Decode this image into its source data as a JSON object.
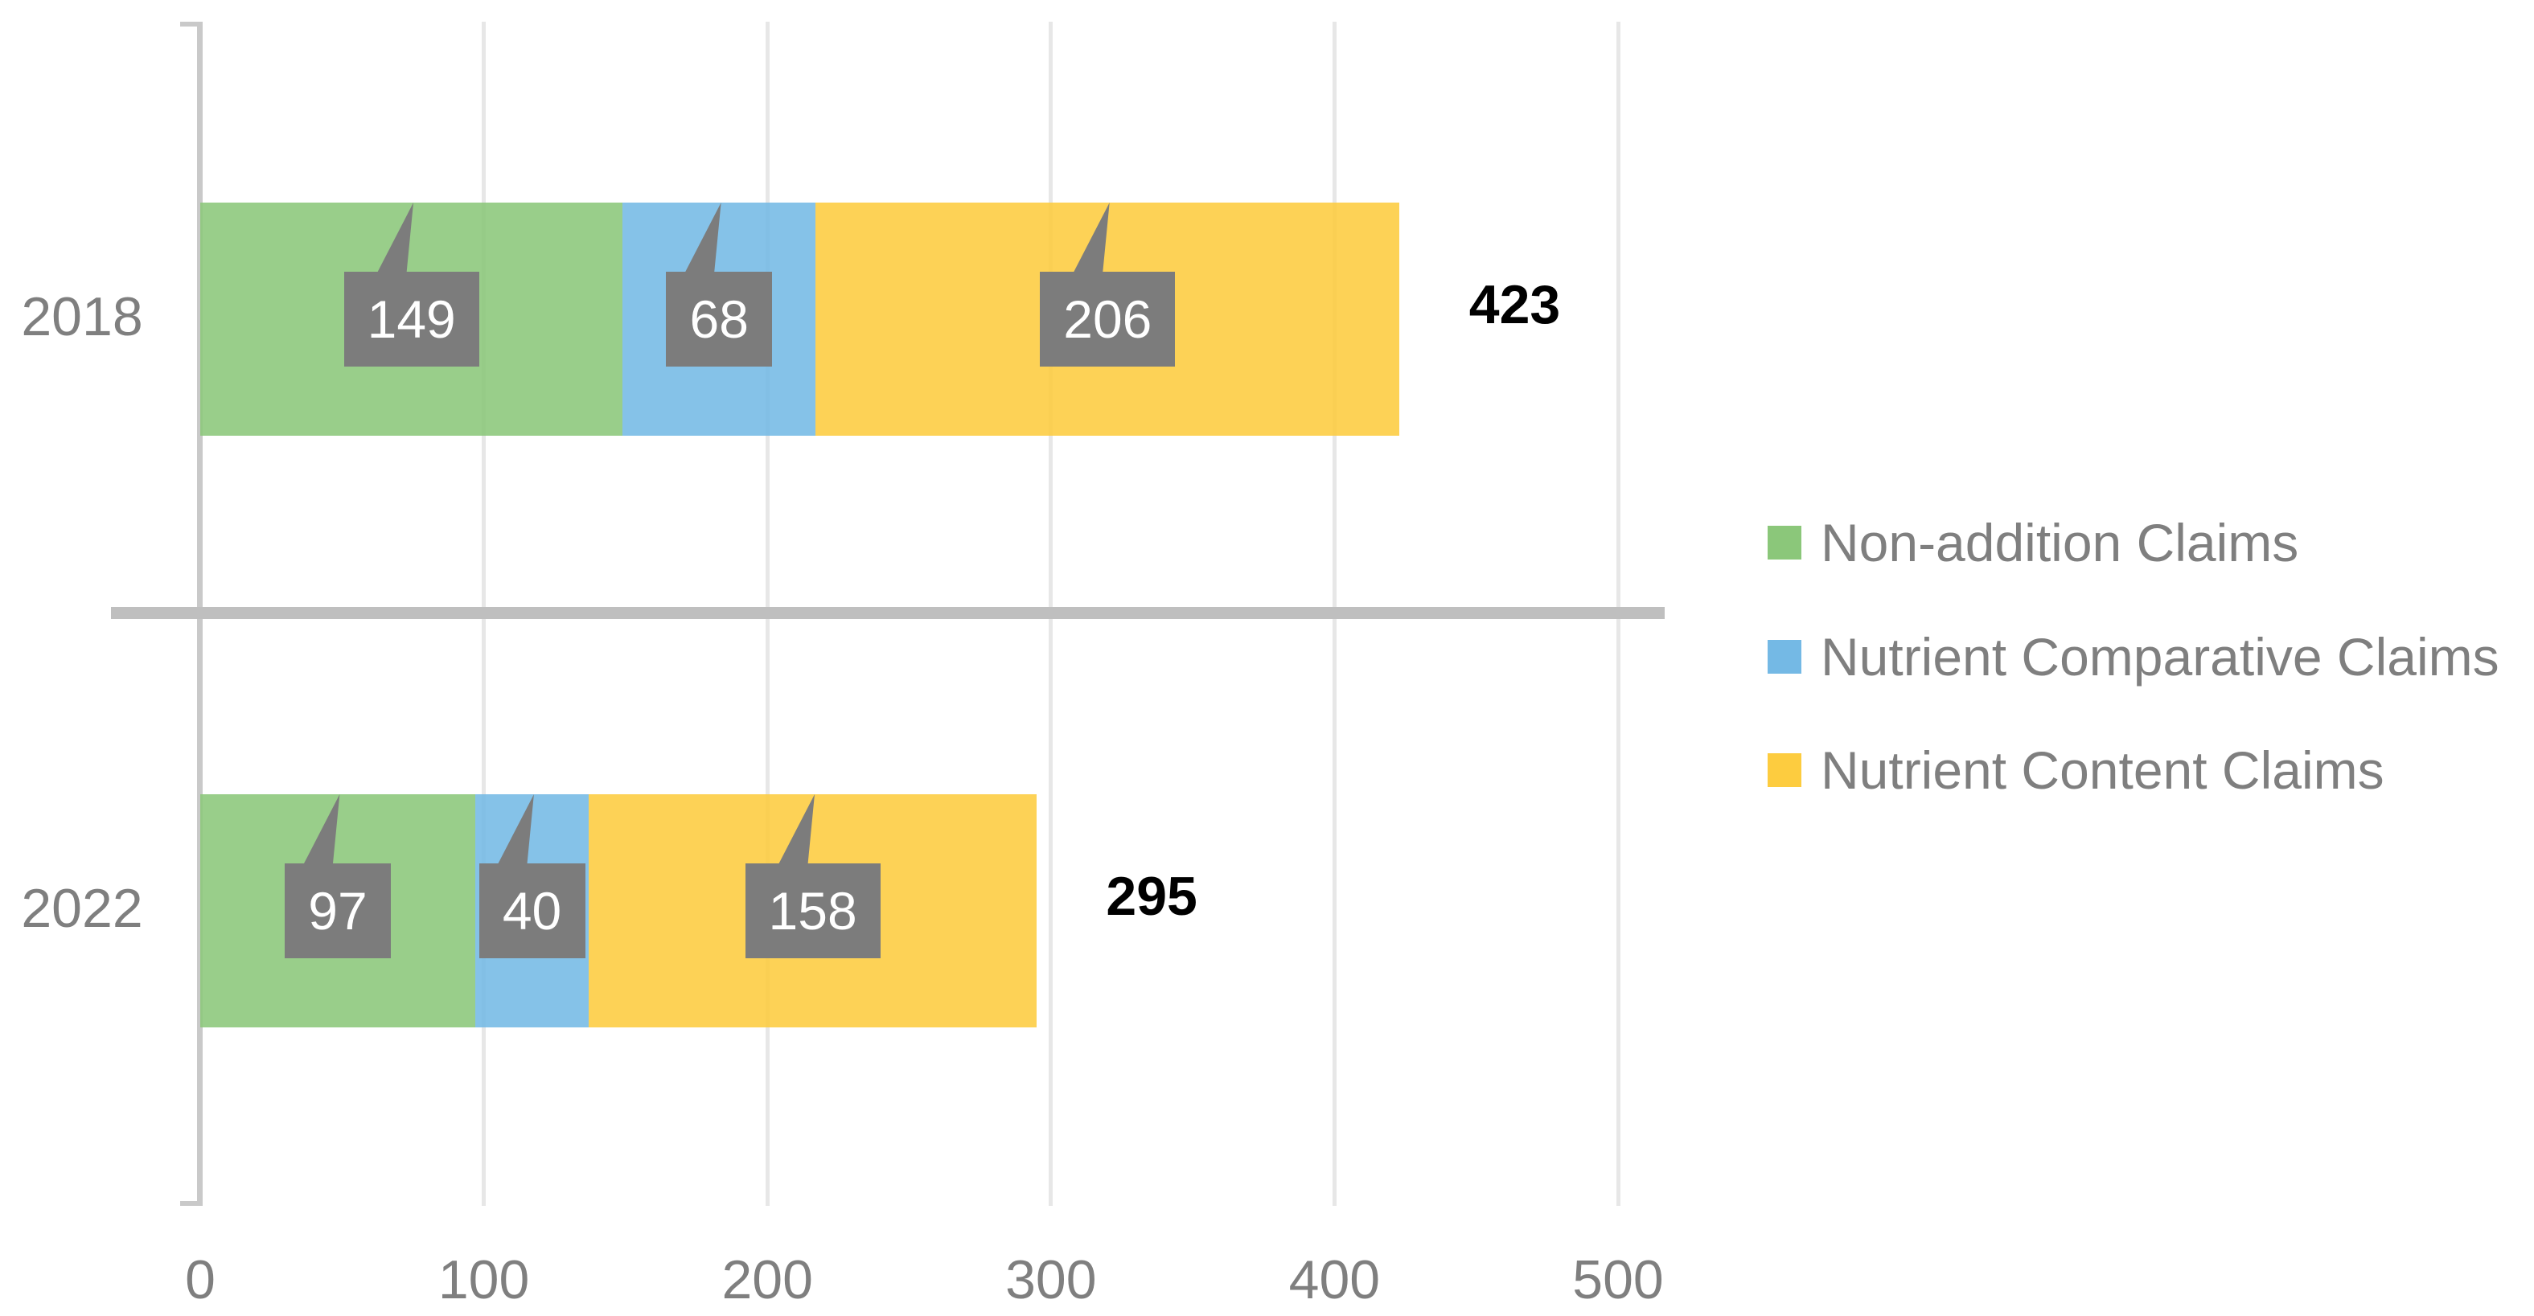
{
  "chart_data": {
    "type": "bar",
    "orientation": "horizontal",
    "stacked": true,
    "title": "",
    "xlabel": "",
    "ylabel": "",
    "categories": [
      "2018",
      "2022"
    ],
    "series": [
      {
        "name": "Non-addition Claims",
        "color": "#8BC77A",
        "values": [
          149,
          97
        ]
      },
      {
        "name": "Nutrient Comparative Claims",
        "color": "#74B9E5",
        "values": [
          68,
          40
        ]
      },
      {
        "name": "Nutrient Content Claims",
        "color": "#FDCC3F",
        "values": [
          206,
          158
        ]
      }
    ],
    "totals": [
      423,
      295
    ],
    "xlim": [
      0,
      500
    ],
    "xticks": [
      "0",
      "100",
      "200",
      "300",
      "400",
      "500"
    ],
    "grid": true,
    "legend_position": "right-middle",
    "data_labels": {
      "style": "gray callout box with leader triangle",
      "box_color": "#7C7C7C",
      "text_color": "#FFFFFF"
    }
  },
  "styles": {
    "background": "#FFFFFF",
    "axis_line_color": "#C9C9C9",
    "gridline_color": "#E7E7E7",
    "separator_color": "#BFBFBF",
    "text_color": "#7F7F7F",
    "total_color": "#000000"
  }
}
